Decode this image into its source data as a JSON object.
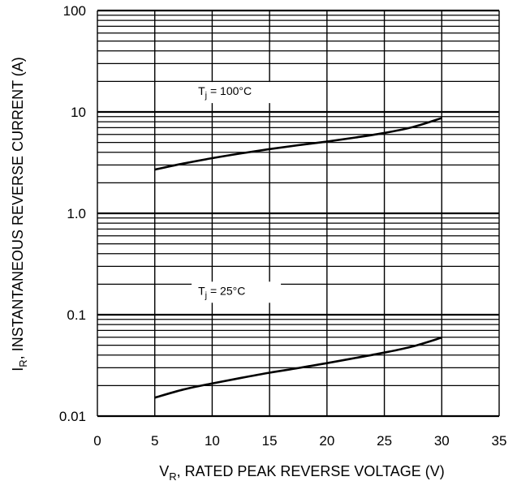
{
  "chart_data": {
    "type": "line",
    "title": "",
    "xlabel": {
      "main": "V",
      "sub": "R",
      "rest": ", RATED PEAK REVERSE VOLTAGE (V)"
    },
    "ylabel": {
      "main": "I",
      "sub": "R",
      "rest": ", INSTANTANEOUS REVERSE CURRENT (A)"
    },
    "xlim": [
      0,
      35
    ],
    "ylim": [
      0.01,
      100
    ],
    "yscale": "log",
    "grid": true,
    "x_tick_labels": [
      "0",
      "5",
      "10",
      "15",
      "20",
      "25",
      "30",
      "35"
    ],
    "y_tick_labels": [
      "0.01",
      "0.1",
      "1.0",
      "10",
      "100"
    ],
    "series": [
      {
        "annotation": {
          "main": "T",
          "sub": "j",
          "rest": " = 100°C"
        },
        "x": [
          5,
          7.5,
          10,
          12.5,
          15,
          17.5,
          20,
          22.5,
          25,
          27.5,
          30
        ],
        "y": [
          2.7,
          3.1,
          3.5,
          3.9,
          4.3,
          4.7,
          5.1,
          5.6,
          6.2,
          7.1,
          8.7
        ]
      },
      {
        "annotation": {
          "main": "T",
          "sub": "j",
          "rest": " = 25°C"
        },
        "x": [
          5,
          7.5,
          10,
          12.5,
          15,
          17.5,
          20,
          22.5,
          25,
          27.5,
          30
        ],
        "y": [
          0.0152,
          0.0183,
          0.021,
          0.0238,
          0.0268,
          0.0298,
          0.0333,
          0.0375,
          0.0423,
          0.0488,
          0.0595
        ]
      }
    ]
  }
}
